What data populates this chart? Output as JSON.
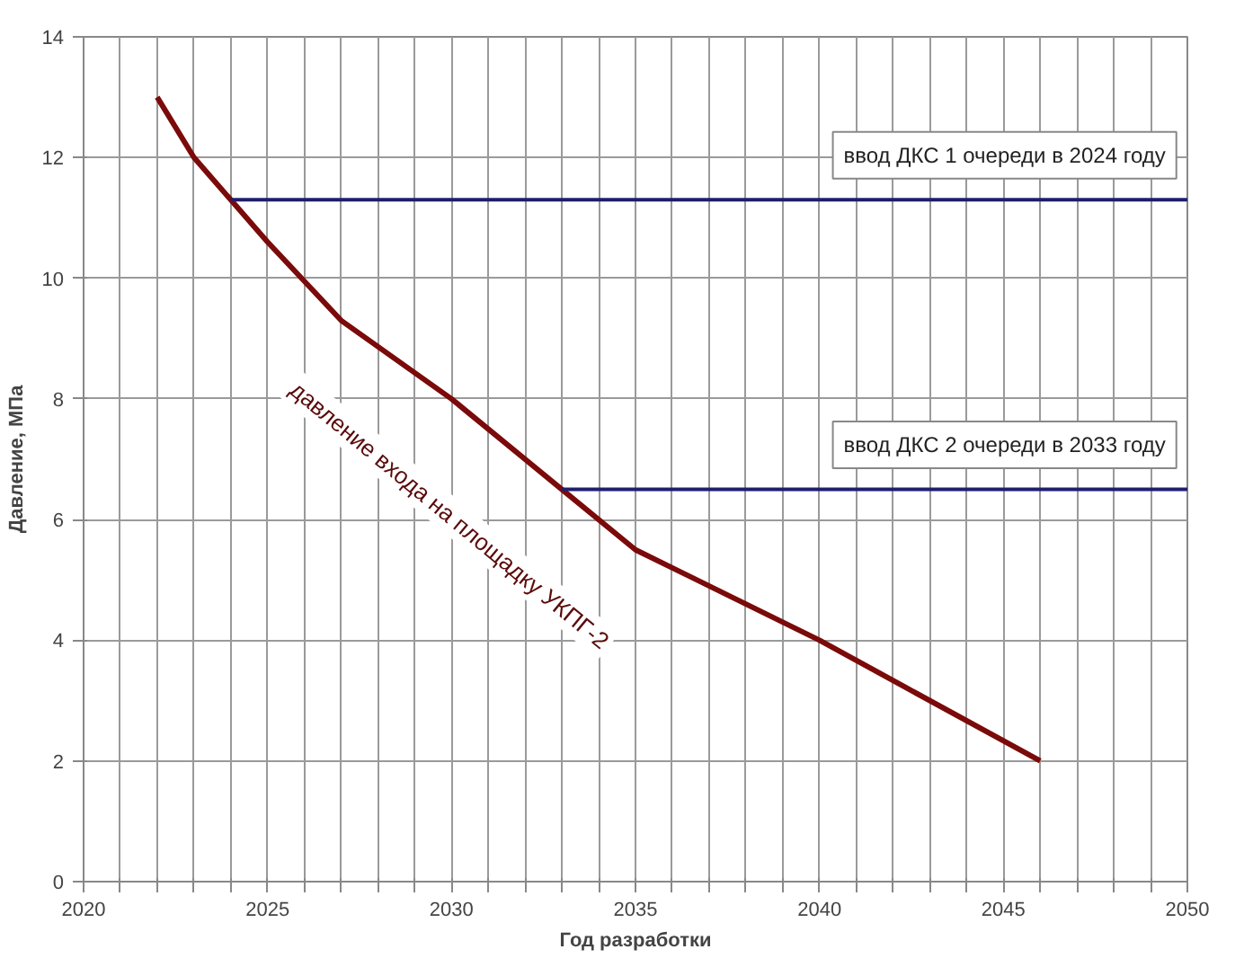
{
  "chart_data": {
    "type": "line",
    "xlabel": "Год разработки",
    "ylabel": "Давление, МПа",
    "xlim": [
      2020,
      2050
    ],
    "ylim": [
      0,
      14
    ],
    "xticks": [
      2020,
      {
        "value": 2021,
        "label": null
      },
      {
        "value": 2022,
        "label": null
      },
      {
        "value": 2023,
        "label": null
      },
      {
        "value": 2024,
        "label": null
      },
      2025,
      {
        "value": 2026,
        "label": null
      },
      {
        "value": 2027,
        "label": null
      },
      {
        "value": 2028,
        "label": null
      },
      {
        "value": 2029,
        "label": null
      },
      2030,
      {
        "value": 2031,
        "label": null
      },
      {
        "value": 2032,
        "label": null
      },
      {
        "value": 2033,
        "label": null
      },
      {
        "value": 2034,
        "label": null
      },
      2035,
      {
        "value": 2036,
        "label": null
      },
      {
        "value": 2037,
        "label": null
      },
      {
        "value": 2038,
        "label": null
      },
      {
        "value": 2039,
        "label": null
      },
      2040,
      {
        "value": 2041,
        "label": null
      },
      {
        "value": 2042,
        "label": null
      },
      {
        "value": 2043,
        "label": null
      },
      {
        "value": 2044,
        "label": null
      },
      2045,
      {
        "value": 2046,
        "label": null
      },
      {
        "value": 2047,
        "label": null
      },
      {
        "value": 2048,
        "label": null
      },
      {
        "value": 2049,
        "label": null
      },
      2050
    ],
    "yticks": [
      0,
      2,
      4,
      6,
      8,
      10,
      12,
      14
    ],
    "grid": true,
    "legend": false,
    "marker": "none",
    "line_style": "solid",
    "series": [
      {
        "name": "давление входа на площадку УКПГ-2",
        "color": "#7b0a0a",
        "x": [
          2022,
          2023,
          2024,
          2025,
          2027,
          2030,
          2033,
          2035,
          2040,
          2046
        ],
        "values": [
          13.0,
          12.0,
          11.3,
          10.6,
          9.3,
          8.0,
          6.5,
          5.5,
          4.0,
          2.0
        ]
      },
      {
        "name": "ввод ДКС 1 очереди в 2024 году",
        "color": "#1f1f6e",
        "x": [
          2024,
          2050
        ],
        "values": [
          11.3,
          11.3
        ]
      },
      {
        "name": "ввод ДКС 2 очереди в 2033 году",
        "color": "#1f1f6e",
        "x": [
          2033,
          2050
        ],
        "values": [
          6.5,
          6.5
        ]
      }
    ]
  }
}
